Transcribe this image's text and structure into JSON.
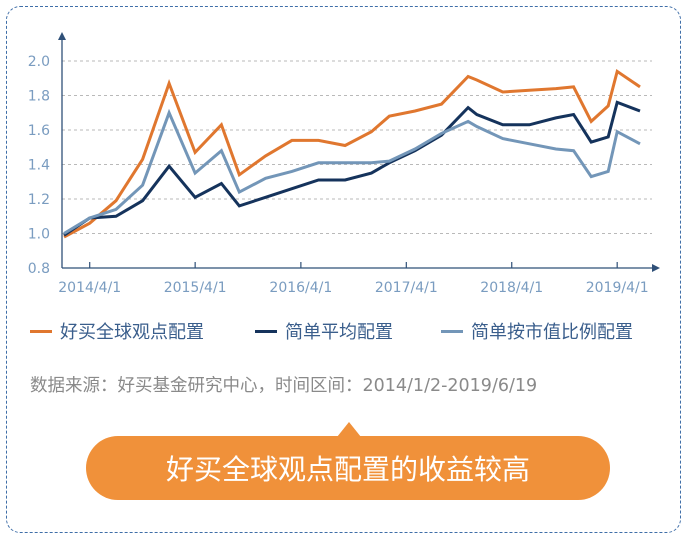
{
  "chart_data": {
    "type": "line",
    "x_ticks": [
      "2014/4/1",
      "2015/4/1",
      "2016/4/1",
      "2017/4/1",
      "2018/4/1",
      "2019/4/1"
    ],
    "x": [
      "2014/1/2",
      "2014/4/1",
      "2014/7/1",
      "2014/10/1",
      "2015/1/1",
      "2015/4/1",
      "2015/7/1",
      "2015/9/1",
      "2015/12/1",
      "2016/3/1",
      "2016/6/1",
      "2016/9/1",
      "2016/12/1",
      "2017/2/1",
      "2017/5/1",
      "2017/8/1",
      "2017/11/1",
      "2017/12/1",
      "2018/3/1",
      "2018/6/1",
      "2018/9/1",
      "2018/11/1",
      "2019/1/1",
      "2019/3/1",
      "2019/4/1",
      "2019/6/19"
    ],
    "series": [
      {
        "name": "好买全球观点配置",
        "color": "#e0772f",
        "values": [
          0.98,
          1.06,
          1.19,
          1.43,
          1.87,
          1.47,
          1.63,
          1.34,
          1.45,
          1.54,
          1.54,
          1.51,
          1.59,
          1.68,
          1.71,
          1.75,
          1.91,
          1.89,
          1.82,
          1.83,
          1.84,
          1.85,
          1.65,
          1.74,
          1.94,
          1.85
        ]
      },
      {
        "name": "简单平均配置",
        "color": "#15335c",
        "values": [
          0.99,
          1.09,
          1.1,
          1.19,
          1.39,
          1.21,
          1.29,
          1.16,
          1.21,
          1.26,
          1.31,
          1.31,
          1.35,
          1.41,
          1.48,
          1.57,
          1.73,
          1.69,
          1.63,
          1.63,
          1.67,
          1.69,
          1.53,
          1.56,
          1.76,
          1.71
        ]
      },
      {
        "name": "简单按市值比例配置",
        "color": "#7396b8",
        "values": [
          1.0,
          1.09,
          1.14,
          1.28,
          1.7,
          1.35,
          1.48,
          1.24,
          1.32,
          1.36,
          1.41,
          1.41,
          1.41,
          1.42,
          1.49,
          1.58,
          1.65,
          1.62,
          1.55,
          1.52,
          1.49,
          1.48,
          1.33,
          1.36,
          1.59,
          1.52
        ]
      }
    ],
    "ylim": [
      0.8,
      2.1
    ],
    "yticks": [
      "2.0",
      "1.8",
      "1.6",
      "1.4",
      "1.2",
      "1.0",
      "0.8"
    ],
    "grid": true,
    "legend": "bottom"
  },
  "source_note": "数据来源：好买基金研究中心，时间区间：2014/1/2-2019/6/19",
  "banner_text": "好买全球观点配置的收益较高"
}
